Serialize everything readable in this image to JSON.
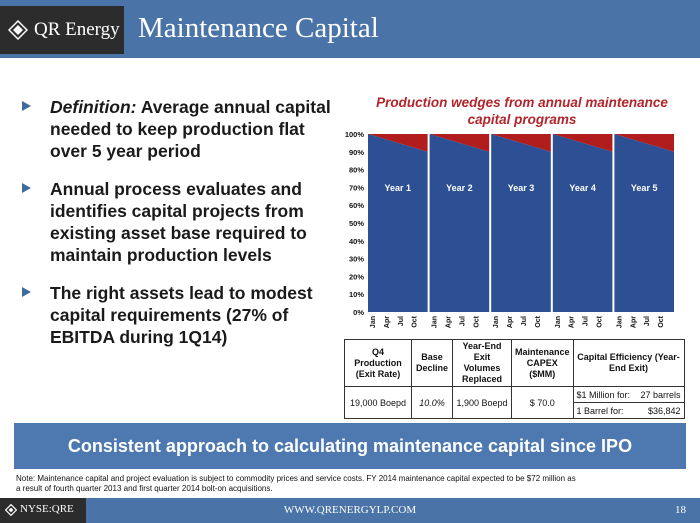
{
  "header": {
    "company": "QR Energy",
    "title": "Maintenance Capital"
  },
  "bullets": [
    {
      "lead": "Definition:",
      "text": " Average annual capital needed to keep production flat over 5 year period"
    },
    {
      "lead": "",
      "text": "Annual process evaluates and identifies capital projects from existing asset base required to maintain production levels"
    },
    {
      "lead": "",
      "text": "The right assets lead to modest capital requirements (27% of EBITDA during 1Q14)"
    }
  ],
  "colors": {
    "base": "#2d4f93",
    "wedge": "#b11c1c",
    "header": "#4a73a8",
    "chart_title": "#b3242b"
  },
  "chart_data": {
    "type": "area",
    "title": "Production wedges from annual maintenance capital programs",
    "y_ticks": [
      "0%",
      "10%",
      "20%",
      "30%",
      "40%",
      "50%",
      "60%",
      "70%",
      "80%",
      "90%",
      "100%"
    ],
    "ylim": [
      0,
      100
    ],
    "x_tick_labels": [
      "Jan",
      "Apr",
      "Jul",
      "Oct"
    ],
    "series": [
      {
        "name": "",
        "label_hidden": true,
        "values": [
          100,
          90
        ]
      }
    ],
    "years": [
      {
        "label": "Year 1",
        "base_start": 100,
        "base_end": 90
      },
      {
        "label": "Year 2",
        "base_start": 100,
        "base_end": 90
      },
      {
        "label": "Year 3",
        "base_start": 100,
        "base_end": 90
      },
      {
        "label": "Year 4",
        "base_start": 100,
        "base_end": 90
      },
      {
        "label": "Year 5",
        "base_start": 100,
        "base_end": 90
      }
    ]
  },
  "table": {
    "headers": [
      "Q4 Production (Exit Rate)",
      "Base Decline",
      "Year-End Exit Volumes Replaced",
      "Maintenance CAPEX ($MM)",
      "Capital Efficiency (Year-End Exit)"
    ],
    "row": {
      "production": "19,000 Boepd",
      "decline": "10.0%",
      "volumes": "1,900 Boepd",
      "capex": "$ 70.0"
    },
    "efficiency": [
      {
        "label": "$1 Million for:",
        "value": "27 barrels"
      },
      {
        "label": "1 Barrel for:",
        "value": "$36,842"
      }
    ]
  },
  "banner": "Consistent approach to calculating maintenance capital since IPO",
  "note": "Note: Maintenance capital and project evaluation is subject to commodity prices and service costs.  FY 2014 maintenance capital expected to be $72 million as a result of fourth quarter 2013 and first quarter 2014 bolt-on acquisitions.",
  "footer": {
    "ticker": "NYSE:QRE",
    "website": "WWW.QRENERGYLP.COM",
    "page": "18"
  }
}
